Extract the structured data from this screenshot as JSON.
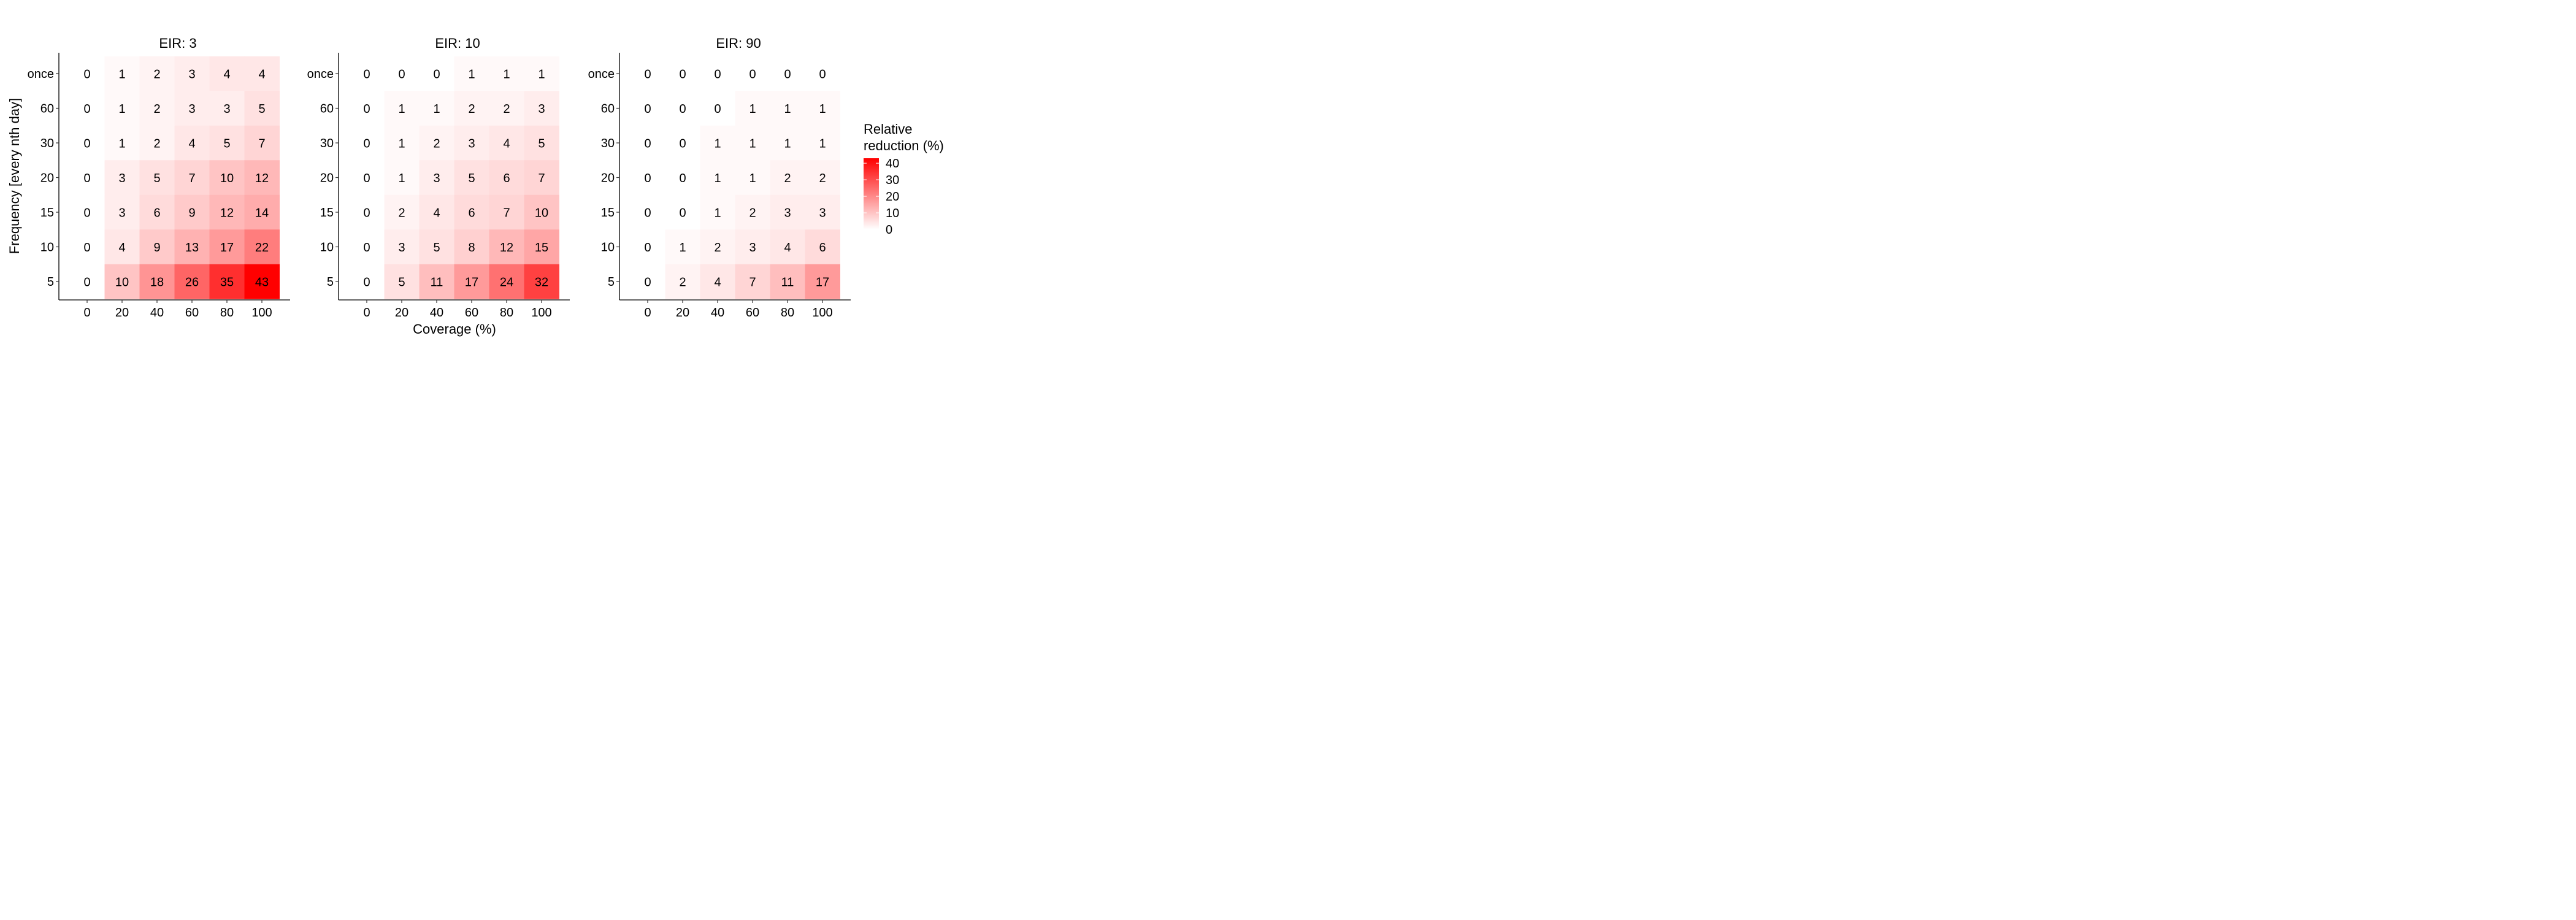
{
  "chart_data": {
    "type": "heatmap",
    "xlabel": "Coverage (%)",
    "ylabel": "Frequency [every nth day]",
    "x_categories": [
      "0",
      "20",
      "40",
      "60",
      "80",
      "100"
    ],
    "y_categories": [
      "once",
      "60",
      "30",
      "20",
      "15",
      "10",
      "5"
    ],
    "panels": [
      {
        "title": "EIR: 3",
        "values": [
          [
            0,
            1,
            2,
            3,
            4,
            4
          ],
          [
            0,
            1,
            2,
            3,
            3,
            5
          ],
          [
            0,
            1,
            2,
            4,
            5,
            7
          ],
          [
            0,
            3,
            5,
            7,
            10,
            12
          ],
          [
            0,
            3,
            6,
            9,
            12,
            14
          ],
          [
            0,
            4,
            9,
            13,
            17,
            22
          ],
          [
            0,
            10,
            18,
            26,
            35,
            43
          ]
        ]
      },
      {
        "title": "EIR: 10",
        "values": [
          [
            0,
            0,
            0,
            1,
            1,
            1
          ],
          [
            0,
            1,
            1,
            2,
            2,
            3
          ],
          [
            0,
            1,
            2,
            3,
            4,
            5
          ],
          [
            0,
            1,
            3,
            5,
            6,
            7
          ],
          [
            0,
            2,
            4,
            6,
            7,
            10
          ],
          [
            0,
            3,
            5,
            8,
            12,
            15
          ],
          [
            0,
            5,
            11,
            17,
            24,
            32
          ]
        ]
      },
      {
        "title": "EIR: 90",
        "values": [
          [
            0,
            0,
            0,
            0,
            0,
            0
          ],
          [
            0,
            0,
            0,
            1,
            1,
            1
          ],
          [
            0,
            0,
            1,
            1,
            1,
            1
          ],
          [
            0,
            0,
            1,
            1,
            2,
            2
          ],
          [
            0,
            0,
            1,
            2,
            3,
            3
          ],
          [
            0,
            1,
            2,
            3,
            4,
            6
          ],
          [
            0,
            2,
            4,
            7,
            11,
            17
          ]
        ]
      }
    ],
    "legend": {
      "title_lines": [
        "Relative",
        "reduction (%)"
      ],
      "ticks": [
        "40",
        "30",
        "20",
        "10",
        "0"
      ],
      "tick_values": [
        40,
        30,
        20,
        10,
        0
      ],
      "range": [
        0,
        43
      ],
      "low_color": "#ffffff",
      "high_color": "#ff0000"
    },
    "grid": false
  }
}
